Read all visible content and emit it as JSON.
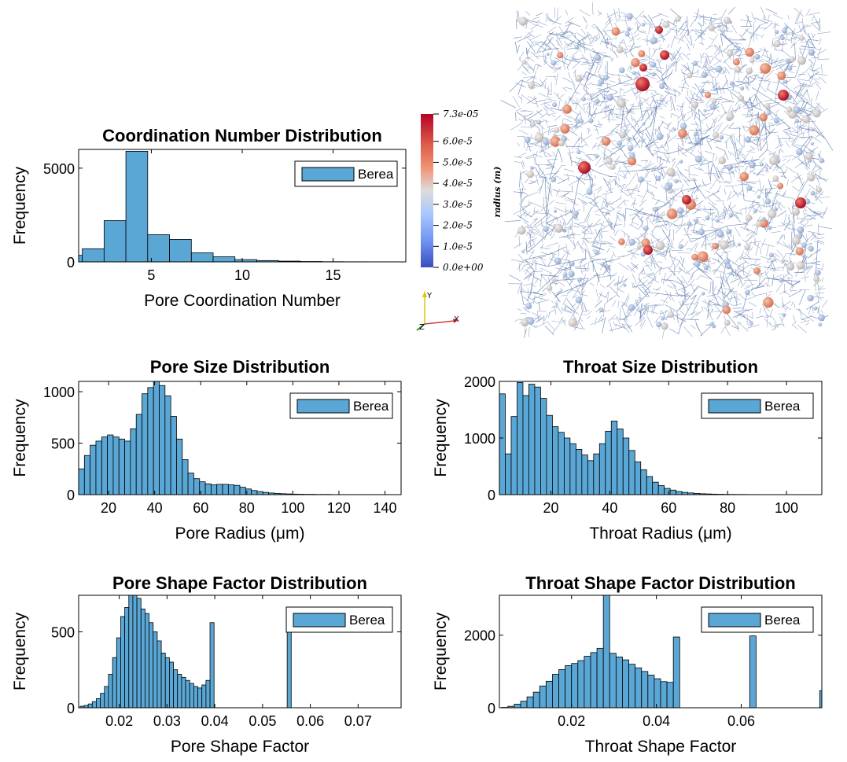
{
  "colors": {
    "bar": "#5aa7d6",
    "edge": "#000000"
  },
  "chart_data": [
    {
      "id": "coord",
      "type": "bar",
      "title": "Coordination Number Distribution",
      "xlabel": "Pore Coordination Number",
      "ylabel": "Frequency",
      "xlim": [
        1,
        19
      ],
      "ylim": [
        0,
        6000
      ],
      "xticks": [
        5,
        10,
        15
      ],
      "yticks": [
        0,
        5000
      ],
      "legend": "Berea",
      "legend_position": "top-right",
      "bins": {
        "start": 0,
        "width": 1.2
      },
      "values": [
        350,
        700,
        2200,
        5900,
        1450,
        1200,
        480,
        270,
        120,
        70,
        40,
        20,
        10,
        6,
        4,
        3
      ]
    },
    {
      "id": "pore",
      "type": "bar",
      "title": "Pore Size Distribution",
      "xlabel": "Pore Radius (μm)",
      "ylabel": "Frequency",
      "xlim": [
        7,
        147
      ],
      "ylim": [
        0,
        1100
      ],
      "xticks": [
        20,
        40,
        60,
        80,
        100,
        120,
        140
      ],
      "yticks": [
        0,
        500,
        1000
      ],
      "legend": "Berea",
      "legend_position": "top-right",
      "bins": {
        "start": 7,
        "width": 2.5
      },
      "values": [
        250,
        380,
        480,
        520,
        560,
        580,
        560,
        540,
        520,
        640,
        780,
        980,
        1040,
        1100,
        1060,
        960,
        760,
        540,
        340,
        210,
        155,
        125,
        105,
        95,
        100,
        100,
        95,
        90,
        72,
        55,
        40,
        30,
        22,
        16,
        12,
        9,
        7,
        5,
        4,
        3,
        3,
        2,
        2,
        2,
        1,
        1,
        1,
        1,
        1,
        1,
        1,
        1,
        1,
        1
      ]
    },
    {
      "id": "throat",
      "type": "bar",
      "title": "Throat Size Distribution",
      "xlabel": "Throat Radius (μm)",
      "ylabel": "Frequency",
      "xlim": [
        2.5,
        112
      ],
      "ylim": [
        0,
        2000
      ],
      "xticks": [
        20,
        40,
        60,
        80,
        100
      ],
      "yticks": [
        0,
        1000,
        2000
      ],
      "legend": "Berea",
      "legend_position": "top-right",
      "bins": {
        "start": 2.5,
        "width": 2.0
      },
      "values": [
        1780,
        720,
        1380,
        1980,
        1750,
        1950,
        1900,
        1700,
        1400,
        1200,
        1100,
        1000,
        900,
        800,
        700,
        600,
        720,
        900,
        1120,
        1300,
        1160,
        1000,
        780,
        580,
        440,
        320,
        220,
        160,
        110,
        80,
        55,
        40,
        30,
        22,
        16,
        12,
        9,
        7,
        5,
        4,
        3,
        3,
        2,
        2,
        1,
        1,
        1,
        1,
        1,
        1,
        1,
        1,
        1,
        1
      ]
    },
    {
      "id": "poreshape",
      "type": "bar",
      "title": "Pore Shape Factor Distribution",
      "xlabel": "Pore Shape Factor",
      "ylabel": "Frequency",
      "xlim": [
        0.0115,
        0.079
      ],
      "ylim": [
        0,
        740
      ],
      "xticks": [
        0.02,
        0.03,
        0.04,
        0.05,
        0.06,
        0.07
      ],
      "yticks": [
        0,
        500
      ],
      "legend": "Berea",
      "legend_position": "top-right",
      "bins": {
        "start": 0.0118,
        "width": 0.00085
      },
      "values": [
        10,
        15,
        25,
        40,
        60,
        95,
        140,
        220,
        330,
        460,
        600,
        660,
        740,
        740,
        720,
        650,
        620,
        560,
        500,
        440,
        360,
        330,
        300,
        250,
        220,
        200,
        180,
        160,
        140,
        130,
        150,
        180,
        560,
        0,
        0,
        0,
        0,
        0,
        0,
        0,
        0,
        0,
        0,
        0,
        0,
        0,
        0,
        0,
        0,
        0,
        0,
        540
      ],
      "values_note": ""
    },
    {
      "id": "throatshape",
      "type": "bar",
      "title": "Throat Shape Factor Distribution",
      "xlabel": "Throat Shape Factor",
      "ylabel": "Frequency",
      "xlim": [
        0.003,
        0.079
      ],
      "ylim": [
        0,
        3100
      ],
      "xticks": [
        0.02,
        0.04,
        0.06
      ],
      "yticks": [
        0,
        2000
      ],
      "legend": "Berea",
      "legend_position": "top-right",
      "bins": {
        "start": 0.0035,
        "width": 0.0015
      },
      "values": [
        10,
        40,
        100,
        180,
        300,
        430,
        600,
        730,
        920,
        1050,
        1160,
        1220,
        1300,
        1420,
        1520,
        1640,
        3100,
        1500,
        1400,
        1320,
        1200,
        1100,
        1000,
        900,
        800,
        720,
        700,
        1950,
        0,
        0,
        0,
        0,
        0,
        0,
        0,
        0,
        0,
        0,
        0,
        1980,
        0,
        0,
        0,
        0,
        0,
        0,
        0,
        0,
        0,
        0,
        470
      ]
    }
  ],
  "colorbar": {
    "label": "radius (m)",
    "ticks": [
      "7.3e-05",
      "6.0e-5",
      "5.0e-5",
      "4.0e-5",
      "3.0e-5",
      "2.0e-5",
      "1.0e-5",
      "0.0e+00"
    ],
    "colors": [
      "#b40426",
      "#dc5d4a",
      "#f29274",
      "#e9d5cb",
      "#c4d5f3",
      "#8fb1fe",
      "#5977e3",
      "#3b4cc0"
    ]
  },
  "axes_triad": {
    "y": "Y",
    "z": "Z",
    "x": "X"
  }
}
